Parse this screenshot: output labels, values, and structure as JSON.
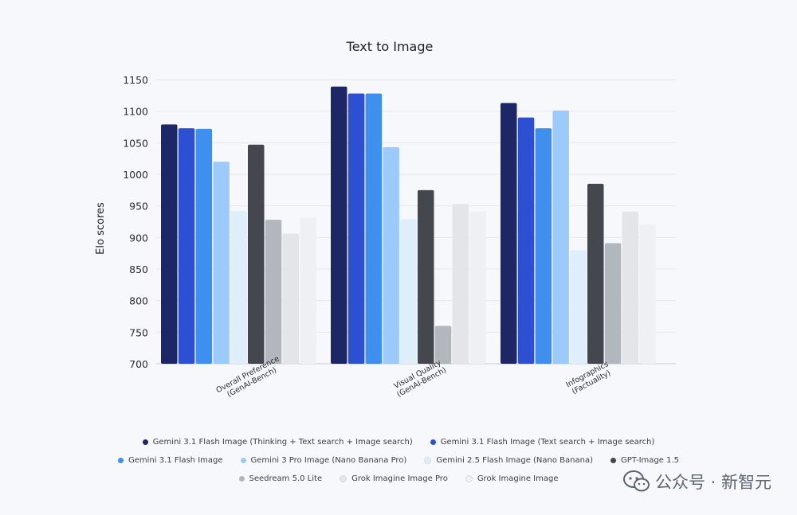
{
  "chart_data": {
    "type": "bar",
    "title": "Text to Image",
    "xlabel": "",
    "ylabel": "Elo scores",
    "ylim": [
      700,
      1150
    ],
    "yticks": [
      700,
      750,
      800,
      850,
      900,
      950,
      1000,
      1050,
      1100,
      1150
    ],
    "grid": true,
    "legend_position": "bottom",
    "categories": [
      [
        "Overall Preference",
        "(GenAI-Bench)"
      ],
      [
        "Visual Quality",
        "(GenAI-Bench)"
      ],
      [
        "Infographics",
        "(Factuality)"
      ]
    ],
    "series": [
      {
        "name": "Gemini 3.1 Flash Image (Thinking + Text search + Image search)",
        "color": "#1d2766",
        "values": [
          1079,
          1139,
          1113
        ]
      },
      {
        "name": "Gemini 3.1 Flash Image (Text search + Image search)",
        "color": "#2d4fd2",
        "values": [
          1073,
          1128,
          1090
        ]
      },
      {
        "name": "Gemini 3.1 Flash Image",
        "color": "#3f8fef",
        "values": [
          1072,
          1128,
          1073
        ]
      },
      {
        "name": "Gemini 3 Pro Image (Nano Banana Pro)",
        "color": "#9ccbfb",
        "values": [
          1020,
          1043,
          1101
        ]
      },
      {
        "name": "Gemini 2.5 Flash Image (Nano Banana)",
        "color": "#deeefb",
        "values": [
          942,
          929,
          880
        ]
      },
      {
        "name": "GPT-Image 1.5",
        "color": "#45474e",
        "values": [
          1047,
          975,
          985
        ]
      },
      {
        "name": "Seedream 5.0 Lite",
        "color": "#b2b6bd",
        "values": [
          928,
          760,
          891
        ]
      },
      {
        "name": "Grok Imagine Image Pro",
        "color": "#e3e5e9",
        "values": [
          906,
          953,
          941
        ]
      },
      {
        "name": "Grok Imagine Image",
        "color": "#eef0f3",
        "values": [
          931,
          941,
          921
        ]
      }
    ]
  },
  "watermark": {
    "text": "公众号 · 新智元",
    "icon": "wechat-icon"
  }
}
